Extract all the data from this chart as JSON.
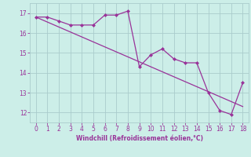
{
  "x": [
    0,
    1,
    2,
    3,
    4,
    5,
    6,
    7,
    8,
    9,
    10,
    11,
    12,
    13,
    14,
    15,
    16,
    17,
    18
  ],
  "y_line": [
    16.8,
    16.8,
    16.6,
    16.4,
    16.4,
    16.4,
    16.9,
    16.9,
    17.1,
    14.3,
    14.9,
    15.2,
    14.7,
    14.5,
    14.5,
    13.0,
    12.1,
    11.9,
    13.5
  ],
  "y_trend": [
    16.8,
    16.55,
    16.3,
    16.05,
    15.8,
    15.55,
    15.3,
    15.05,
    14.8,
    14.55,
    14.3,
    14.05,
    13.8,
    13.55,
    13.3,
    13.05,
    12.8,
    12.55,
    12.3
  ],
  "line_color": "#993399",
  "trend_color": "#993399",
  "bg_color": "#cceee8",
  "grid_color": "#aacccc",
  "text_color": "#993399",
  "xlabel": "Windchill (Refroidissement éolien,°C)",
  "xlim": [
    -0.5,
    18.5
  ],
  "ylim": [
    11.5,
    17.5
  ],
  "yticks": [
    12,
    13,
    14,
    15,
    16,
    17
  ],
  "xticks": [
    0,
    1,
    2,
    3,
    4,
    5,
    6,
    7,
    8,
    9,
    10,
    11,
    12,
    13,
    14,
    15,
    16,
    17,
    18
  ]
}
